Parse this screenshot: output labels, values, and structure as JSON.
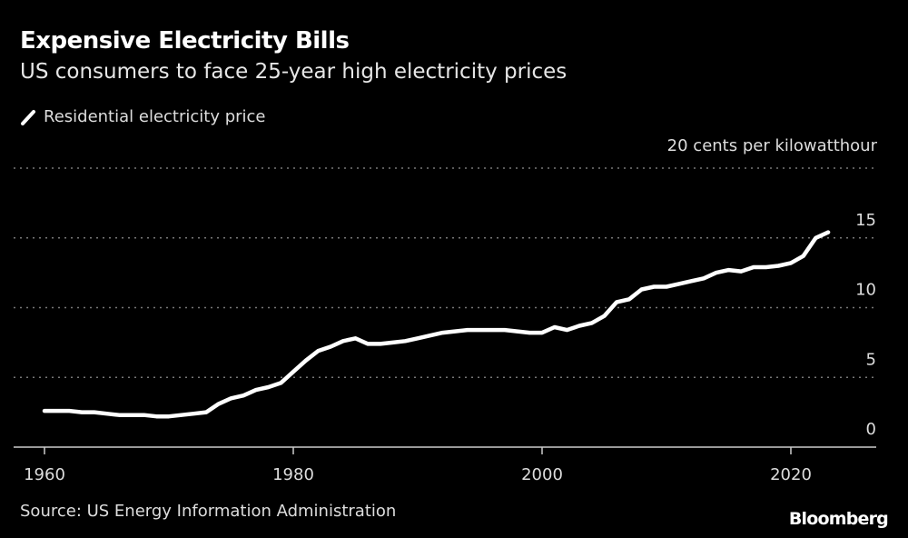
{
  "chart_data": {
    "type": "line",
    "title": "Expensive Electricity Bills",
    "subtitle": "US consumers to face 25-year high electricity prices",
    "legend": [
      "Residential electricity price"
    ],
    "legend_placement": "top-left",
    "unit_label": "20 cents per kilowatthour",
    "source": "Source: US Energy Information Administration",
    "x": [
      1960,
      1961,
      1962,
      1963,
      1964,
      1965,
      1966,
      1967,
      1968,
      1969,
      1970,
      1971,
      1972,
      1973,
      1974,
      1975,
      1976,
      1977,
      1978,
      1979,
      1980,
      1981,
      1982,
      1983,
      1984,
      1985,
      1986,
      1987,
      1988,
      1989,
      1990,
      1991,
      1992,
      1993,
      1994,
      1995,
      1996,
      1997,
      1998,
      1999,
      2000,
      2001,
      2002,
      2003,
      2004,
      2005,
      2006,
      2007,
      2008,
      2009,
      2010,
      2011,
      2012,
      2013,
      2014,
      2015,
      2016,
      2017,
      2018,
      2019,
      2020,
      2021,
      2022,
      2023
    ],
    "series": [
      {
        "name": "Residential electricity price",
        "color": "#ffffff",
        "values": [
          2.6,
          2.6,
          2.6,
          2.5,
          2.5,
          2.4,
          2.3,
          2.3,
          2.3,
          2.2,
          2.2,
          2.3,
          2.4,
          2.5,
          3.1,
          3.5,
          3.7,
          4.1,
          4.3,
          4.6,
          5.4,
          6.2,
          6.9,
          7.2,
          7.6,
          7.8,
          7.4,
          7.4,
          7.5,
          7.6,
          7.8,
          8.0,
          8.2,
          8.3,
          8.4,
          8.4,
          8.4,
          8.4,
          8.3,
          8.2,
          8.2,
          8.6,
          8.4,
          8.7,
          8.9,
          9.4,
          10.4,
          10.6,
          11.3,
          11.5,
          11.5,
          11.7,
          11.9,
          12.1,
          12.5,
          12.7,
          12.6,
          12.9,
          12.9,
          13.0,
          13.2,
          13.7,
          15.0,
          15.4
        ]
      }
    ],
    "xticks": [
      1960,
      1980,
      2000,
      2020
    ],
    "xtick_labels": [
      "1960",
      "1980",
      "2000",
      "2020"
    ],
    "yticks": [
      0,
      5,
      10,
      15,
      20
    ],
    "ytick_labels": [
      "0",
      "5",
      "10",
      "15"
    ],
    "xlim": [
      1958,
      2026
    ],
    "ylim": [
      0,
      20
    ],
    "grid": "horizontal dotted",
    "background": "#000000",
    "brand": "Bloomberg"
  }
}
